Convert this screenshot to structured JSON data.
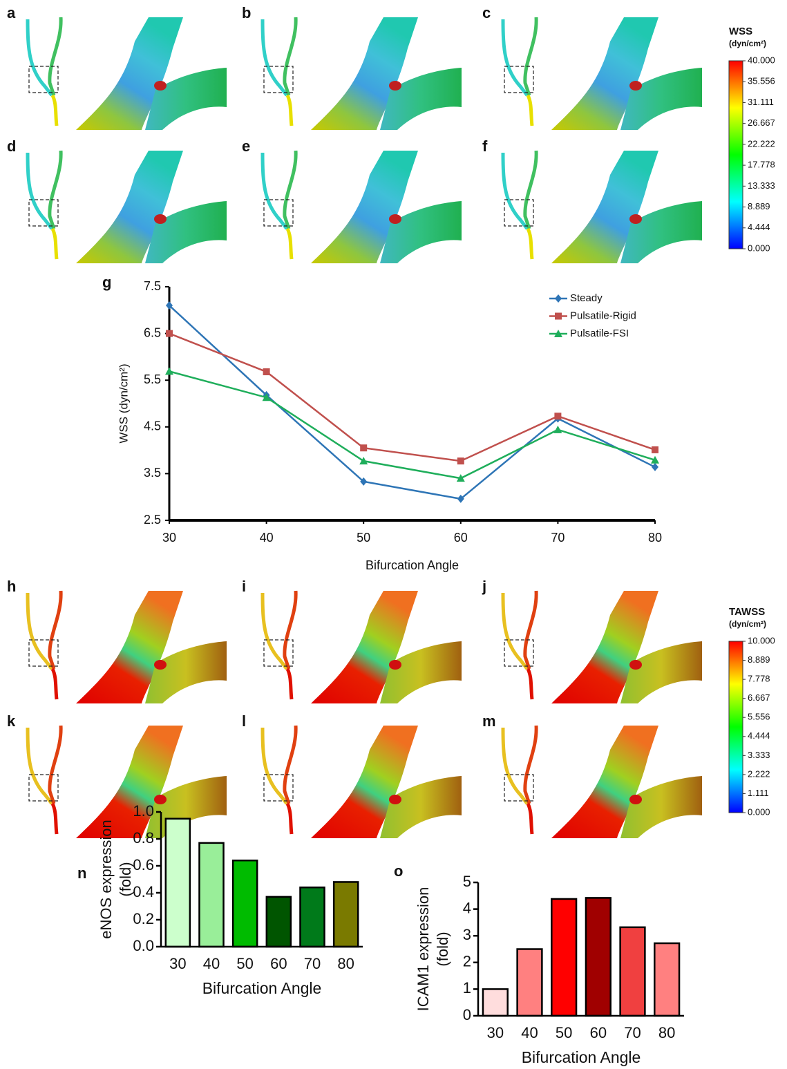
{
  "panel_labels": [
    "a",
    "b",
    "c",
    "d",
    "e",
    "f",
    "h",
    "i",
    "j",
    "k",
    "l",
    "m"
  ],
  "colorbars": [
    {
      "title": "WSS",
      "unit": "(dyn/cm²)",
      "lim": [
        0,
        40
      ],
      "ticks": [
        {
          "value": 40,
          "label": "40.000"
        },
        35.556,
        31.111,
        26.667,
        22.222,
        17.778,
        13.333,
        8.889,
        4.444,
        {
          "value": 0,
          "label": "0.000"
        }
      ]
    },
    {
      "title": "TAWSS",
      "unit": "(dyn/cm²)",
      "lim": [
        0,
        10
      ],
      "ticks": [
        {
          "value": 10,
          "label": "10.000"
        },
        8.889,
        7.778,
        6.667,
        5.556,
        4.444,
        3.333,
        2.222,
        1.111,
        {
          "value": 0,
          "label": "0.000"
        }
      ]
    }
  ],
  "chart_data": [
    {
      "type": "line",
      "panel": "g",
      "xlabel": "Bifurcation Angle",
      "ylabel": "WSS (dyn/cm²)",
      "x": [
        30,
        40,
        50,
        60,
        70,
        80
      ],
      "xlim": [
        30,
        80
      ],
      "xticks": [
        30,
        40,
        50,
        60,
        70,
        80
      ],
      "ylim": [
        2.5,
        7.5
      ],
      "yticks": [
        2.5,
        3.5,
        4.5,
        5.5,
        6.5,
        7.5
      ],
      "legend": "upper right",
      "series": [
        {
          "name": "Steady",
          "color": "#2e75b6",
          "marker": "diamond",
          "values": [
            7.1,
            5.18,
            3.33,
            2.96,
            4.68,
            3.64
          ]
        },
        {
          "name": "Pulsatile-Rigid",
          "color": "#c0504d",
          "marker": "square",
          "values": [
            6.5,
            5.68,
            4.05,
            3.77,
            4.73,
            4.01
          ]
        },
        {
          "name": "Pulsatile-FSI",
          "color": "#1fae5b",
          "marker": "triangle",
          "values": [
            5.69,
            5.13,
            3.77,
            3.4,
            4.44,
            3.79
          ]
        }
      ]
    },
    {
      "type": "bar",
      "panel": "n",
      "xlabel": "Bifurcation Angle",
      "ylabel": [
        "eNOS expression",
        "(fold)"
      ],
      "categories": [
        "30",
        "40",
        "50",
        "60",
        "70",
        "80"
      ],
      "values": [
        0.95,
        0.77,
        0.64,
        0.37,
        0.44,
        0.48
      ],
      "colors": [
        "#ccffcc",
        "#99ee99",
        "#00bb00",
        "#005500",
        "#007a1a",
        "#7a7a00"
      ],
      "ylim": [
        0,
        1
      ],
      "yticks": [
        {
          "value": 0,
          "label": "0.0"
        },
        0.2,
        0.4,
        0.6,
        0.8,
        {
          "value": 1,
          "label": "1.0"
        }
      ]
    },
    {
      "type": "bar",
      "panel": "o",
      "xlabel": "Bifurcation Angle",
      "ylabel": [
        "ICAM1 expression",
        "(fold)"
      ],
      "categories": [
        "30",
        "40",
        "50",
        "60",
        "70",
        "80"
      ],
      "values": [
        1.0,
        2.5,
        4.38,
        4.42,
        3.32,
        2.72
      ],
      "colors": [
        "#ffdddd",
        "#ff8080",
        "#ff0000",
        "#a00000",
        "#f04040",
        "#ff8080"
      ],
      "ylim": [
        0,
        5
      ],
      "yticks": [
        0,
        1,
        2,
        3,
        4,
        5
      ]
    }
  ]
}
